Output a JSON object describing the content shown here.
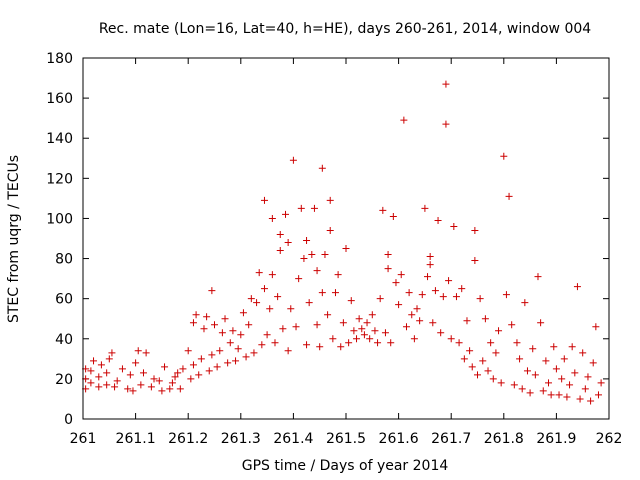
{
  "chart_data": {
    "type": "scatter",
    "title": "Rec. mate (Lon=16, Lat=40, h=HE), days 260-261, 2014, window 004",
    "xlabel": "GPS time / Days of year 2014",
    "ylabel": "STEC from uqrg / TECUs",
    "xlim": [
      261,
      262
    ],
    "ylim": [
      0,
      180
    ],
    "x_ticks": [
      "261",
      "261.1",
      "261.2",
      "261.3",
      "261.4",
      "261.5",
      "261.6",
      "261.7",
      "261.8",
      "261.9",
      "262"
    ],
    "y_ticks": [
      "0",
      "20",
      "40",
      "60",
      "80",
      "100",
      "120",
      "140",
      "160",
      "180"
    ],
    "grid": false,
    "legend": "none",
    "marker": "plus",
    "color": "#cc0000",
    "series": [
      {
        "points": [
          [
            261.005,
            15
          ],
          [
            261.005,
            20
          ],
          [
            261.005,
            25
          ],
          [
            261.015,
            18
          ],
          [
            261.015,
            24
          ],
          [
            261.02,
            29
          ],
          [
            261.03,
            16
          ],
          [
            261.03,
            21
          ],
          [
            261.035,
            27
          ],
          [
            261.045,
            17
          ],
          [
            261.045,
            23
          ],
          [
            261.05,
            30
          ],
          [
            261.055,
            33
          ],
          [
            261.06,
            16
          ],
          [
            261.065,
            19
          ],
          [
            261.075,
            25
          ],
          [
            261.085,
            15
          ],
          [
            261.09,
            22
          ],
          [
            261.095,
            14
          ],
          [
            261.1,
            28
          ],
          [
            261.105,
            34
          ],
          [
            261.11,
            17
          ],
          [
            261.115,
            23
          ],
          [
            261.12,
            33
          ],
          [
            261.13,
            16
          ],
          [
            261.135,
            20
          ],
          [
            261.145,
            19
          ],
          [
            261.15,
            14
          ],
          [
            261.155,
            26
          ],
          [
            261.165,
            15
          ],
          [
            261.17,
            18
          ],
          [
            261.175,
            21
          ],
          [
            261.18,
            23
          ],
          [
            261.185,
            15
          ],
          [
            261.19,
            25
          ],
          [
            261.2,
            34
          ],
          [
            261.205,
            20
          ],
          [
            261.21,
            27
          ],
          [
            261.21,
            48
          ],
          [
            261.215,
            52
          ],
          [
            261.22,
            22
          ],
          [
            261.225,
            30
          ],
          [
            261.23,
            45
          ],
          [
            261.235,
            51
          ],
          [
            261.24,
            24
          ],
          [
            261.245,
            32
          ],
          [
            261.245,
            64
          ],
          [
            261.25,
            47
          ],
          [
            261.255,
            26
          ],
          [
            261.26,
            34
          ],
          [
            261.265,
            43
          ],
          [
            261.27,
            50
          ],
          [
            261.275,
            28
          ],
          [
            261.28,
            38
          ],
          [
            261.285,
            44
          ],
          [
            261.29,
            29
          ],
          [
            261.295,
            35
          ],
          [
            261.3,
            42
          ],
          [
            261.305,
            53
          ],
          [
            261.31,
            31
          ],
          [
            261.315,
            47
          ],
          [
            261.32,
            60
          ],
          [
            261.325,
            33
          ],
          [
            261.33,
            58
          ],
          [
            261.335,
            73
          ],
          [
            261.34,
            37
          ],
          [
            261.345,
            65
          ],
          [
            261.345,
            109
          ],
          [
            261.35,
            42
          ],
          [
            261.355,
            55
          ],
          [
            261.36,
            72
          ],
          [
            261.36,
            100
          ],
          [
            261.365,
            38
          ],
          [
            261.37,
            61
          ],
          [
            261.375,
            84
          ],
          [
            261.375,
            92
          ],
          [
            261.38,
            45
          ],
          [
            261.385,
            102
          ],
          [
            261.39,
            34
          ],
          [
            261.39,
            88
          ],
          [
            261.395,
            55
          ],
          [
            261.4,
            129
          ],
          [
            261.405,
            46
          ],
          [
            261.41,
            70
          ],
          [
            261.415,
            105
          ],
          [
            261.42,
            80
          ],
          [
            261.425,
            37
          ],
          [
            261.425,
            89
          ],
          [
            261.43,
            58
          ],
          [
            261.435,
            82
          ],
          [
            261.44,
            105
          ],
          [
            261.445,
            47
          ],
          [
            261.445,
            74
          ],
          [
            261.45,
            36
          ],
          [
            261.455,
            125
          ],
          [
            261.455,
            63
          ],
          [
            261.46,
            82
          ],
          [
            261.465,
            52
          ],
          [
            261.47,
            109
          ],
          [
            261.47,
            94
          ],
          [
            261.475,
            40
          ],
          [
            261.48,
            63
          ],
          [
            261.485,
            72
          ],
          [
            261.49,
            36
          ],
          [
            261.495,
            48
          ],
          [
            261.5,
            85
          ],
          [
            261.505,
            38
          ],
          [
            261.51,
            59
          ],
          [
            261.515,
            44
          ],
          [
            261.52,
            40
          ],
          [
            261.525,
            50
          ],
          [
            261.53,
            45
          ],
          [
            261.535,
            42
          ],
          [
            261.54,
            48
          ],
          [
            261.545,
            40
          ],
          [
            261.55,
            52
          ],
          [
            261.555,
            44
          ],
          [
            261.56,
            38
          ],
          [
            261.565,
            60
          ],
          [
            261.57,
            104
          ],
          [
            261.575,
            43
          ],
          [
            261.58,
            75
          ],
          [
            261.58,
            82
          ],
          [
            261.585,
            38
          ],
          [
            261.59,
            101
          ],
          [
            261.595,
            68
          ],
          [
            261.6,
            57
          ],
          [
            261.605,
            72
          ],
          [
            261.61,
            149
          ],
          [
            261.615,
            46
          ],
          [
            261.62,
            63
          ],
          [
            261.625,
            52
          ],
          [
            261.63,
            40
          ],
          [
            261.635,
            55
          ],
          [
            261.64,
            49
          ],
          [
            261.645,
            62
          ],
          [
            261.65,
            105
          ],
          [
            261.655,
            71
          ],
          [
            261.66,
            81
          ],
          [
            261.66,
            77
          ],
          [
            261.665,
            48
          ],
          [
            261.67,
            64
          ],
          [
            261.675,
            99
          ],
          [
            261.68,
            43
          ],
          [
            261.685,
            61
          ],
          [
            261.69,
            167
          ],
          [
            261.69,
            147
          ],
          [
            261.695,
            69
          ],
          [
            261.7,
            40
          ],
          [
            261.705,
            96
          ],
          [
            261.71,
            61
          ],
          [
            261.715,
            38
          ],
          [
            261.72,
            65
          ],
          [
            261.725,
            30
          ],
          [
            261.73,
            49
          ],
          [
            261.735,
            34
          ],
          [
            261.74,
            26
          ],
          [
            261.745,
            94
          ],
          [
            261.745,
            79
          ],
          [
            261.75,
            22
          ],
          [
            261.755,
            60
          ],
          [
            261.76,
            29
          ],
          [
            261.765,
            50
          ],
          [
            261.77,
            24
          ],
          [
            261.775,
            38
          ],
          [
            261.78,
            20
          ],
          [
            261.785,
            33
          ],
          [
            261.79,
            44
          ],
          [
            261.795,
            18
          ],
          [
            261.8,
            131
          ],
          [
            261.805,
            62
          ],
          [
            261.81,
            111
          ],
          [
            261.815,
            47
          ],
          [
            261.82,
            17
          ],
          [
            261.825,
            38
          ],
          [
            261.83,
            30
          ],
          [
            261.835,
            15
          ],
          [
            261.84,
            58
          ],
          [
            261.845,
            24
          ],
          [
            261.85,
            13
          ],
          [
            261.855,
            35
          ],
          [
            261.86,
            22
          ],
          [
            261.865,
            71
          ],
          [
            261.87,
            48
          ],
          [
            261.875,
            14
          ],
          [
            261.88,
            29
          ],
          [
            261.885,
            18
          ],
          [
            261.89,
            12
          ],
          [
            261.895,
            36
          ],
          [
            261.9,
            25
          ],
          [
            261.905,
            12
          ],
          [
            261.91,
            20
          ],
          [
            261.915,
            30
          ],
          [
            261.92,
            11
          ],
          [
            261.925,
            17
          ],
          [
            261.93,
            36
          ],
          [
            261.935,
            23
          ],
          [
            261.94,
            66
          ],
          [
            261.945,
            10
          ],
          [
            261.95,
            33
          ],
          [
            261.955,
            15
          ],
          [
            261.96,
            21
          ],
          [
            261.965,
            9
          ],
          [
            261.97,
            28
          ],
          [
            261.975,
            46
          ],
          [
            261.98,
            12
          ],
          [
            261.985,
            18
          ]
        ]
      }
    ]
  }
}
